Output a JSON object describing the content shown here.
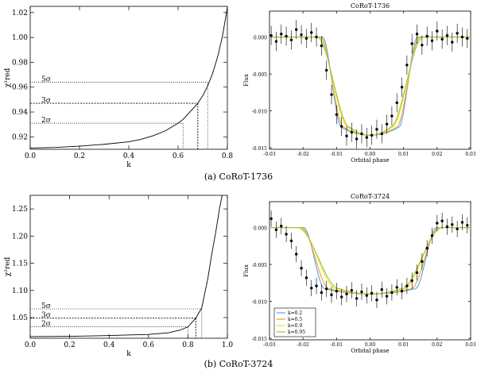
{
  "captions": {
    "a": "(a)  CoRoT-1736",
    "b": "(b)  CoRoT-3724"
  },
  "colors": {
    "blue": "#5aa6e0",
    "orange": "#f0a030",
    "yellow": "#f0e020",
    "green": "#9ac840"
  },
  "chart_data": [
    {
      "id": "chi-a",
      "type": "line",
      "title": "",
      "xlabel": "k",
      "ylabel": "χ²red",
      "xlim": [
        0.0,
        0.8
      ],
      "ylim": [
        0.91,
        1.025
      ],
      "xticks": [
        0.0,
        0.2,
        0.4,
        0.6,
        0.8
      ],
      "xtick_labels": [
        "0.0",
        "0.2",
        "0.4",
        "0.6",
        "0.8"
      ],
      "yticks": [
        0.92,
        0.94,
        0.96,
        0.98,
        1.0,
        1.02
      ],
      "ytick_labels": [
        "0.92",
        "0.94",
        "0.96",
        "0.98",
        "1.00",
        "1.02"
      ],
      "x": [
        0.0,
        0.1,
        0.2,
        0.3,
        0.4,
        0.45,
        0.5,
        0.55,
        0.6,
        0.62,
        0.65,
        0.68,
        0.7,
        0.72,
        0.74,
        0.76,
        0.78,
        0.8
      ],
      "y": [
        0.911,
        0.9115,
        0.9125,
        0.914,
        0.916,
        0.918,
        0.921,
        0.925,
        0.931,
        0.934,
        0.9405,
        0.947,
        0.953,
        0.961,
        0.971,
        0.984,
        1.001,
        1.024
      ],
      "sigma_levels": [
        {
          "label": "5σ",
          "y": 0.964,
          "x": 0.72,
          "style": "dotted"
        },
        {
          "label": "3σ",
          "y": 0.947,
          "x": 0.68,
          "style": "dashed"
        },
        {
          "label": "2σ",
          "y": 0.931,
          "x": 0.62,
          "style": "dotted"
        }
      ]
    },
    {
      "id": "lc-a",
      "type": "scatter",
      "title": "CoRoT-1736",
      "xlabel": "Orbital phase",
      "ylabel": "Flux",
      "xlim": [
        -0.03,
        0.03
      ],
      "ylim": [
        -0.0152,
        0.0035
      ],
      "xticks": [
        -0.03,
        -0.02,
        -0.01,
        0.0,
        0.01,
        0.02,
        0.03
      ],
      "xtick_labels": [
        "-0.03",
        "-0.02",
        "-0.01",
        "0.00",
        "0.01",
        "0.02",
        "0.03"
      ],
      "yticks": [
        0.0,
        -0.005,
        -0.01,
        -0.015
      ],
      "ytick_labels": [
        "0.000",
        "-0.005",
        "-0.010",
        "-0.015"
      ],
      "data": {
        "x": [
          -0.0295,
          -0.028,
          -0.0265,
          -0.025,
          -0.0235,
          -0.022,
          -0.0205,
          -0.019,
          -0.0175,
          -0.016,
          -0.0145,
          -0.013,
          -0.0115,
          -0.01,
          -0.0085,
          -0.007,
          -0.0055,
          -0.004,
          -0.0025,
          -0.001,
          0.0005,
          0.002,
          0.0035,
          0.005,
          0.0065,
          0.008,
          0.0095,
          0.011,
          0.0125,
          0.014,
          0.0155,
          0.017,
          0.0185,
          0.02,
          0.0215,
          0.023,
          0.0245,
          0.026,
          0.0275,
          0.029
        ],
        "y": [
          0.0002,
          -0.0006,
          0.0004,
          0.0001,
          -0.0004,
          0.001,
          0.0003,
          -0.0002,
          0.0006,
          0.0,
          -0.0012,
          -0.0045,
          -0.0078,
          -0.0105,
          -0.0121,
          -0.0134,
          -0.0129,
          -0.0138,
          -0.0131,
          -0.0136,
          -0.0133,
          -0.0125,
          -0.0131,
          -0.0118,
          -0.0107,
          -0.0089,
          -0.0068,
          -0.0038,
          -0.0009,
          0.0004,
          -0.0011,
          0.0001,
          -0.0005,
          0.0008,
          -0.0003,
          0.0002,
          -0.0007,
          0.0005,
          0.0,
          -0.0002
        ],
        "yerr": 0.0013
      },
      "models": [
        {
          "label": "k=0.2",
          "color": "#5aa6e0",
          "depth": -0.0133,
          "t1": 0.0142,
          "t2": 0.0085
        },
        {
          "label": "k=0.5",
          "color": "#f0a030",
          "depth": -0.0133,
          "t1": 0.0148,
          "t2": 0.0078
        },
        {
          "label": "k=0.9",
          "color": "#f0e020",
          "depth": -0.0133,
          "t1": 0.0155,
          "t2": 0.0065
        },
        {
          "label": "k=0.95",
          "color": "#9ac840",
          "depth": -0.0133,
          "t1": 0.0158,
          "t2": 0.006
        }
      ]
    },
    {
      "id": "chi-b",
      "type": "line",
      "title": "",
      "xlabel": "k",
      "ylabel": "χ²red",
      "xlim": [
        0.0,
        1.0
      ],
      "ylim": [
        1.012,
        1.275
      ],
      "xticks": [
        0.0,
        0.2,
        0.4,
        0.6,
        0.8,
        1.0
      ],
      "xtick_labels": [
        "0.0",
        "0.2",
        "0.4",
        "0.6",
        "0.8",
        "1.0"
      ],
      "yticks": [
        1.05,
        1.1,
        1.15,
        1.2,
        1.25
      ],
      "ytick_labels": [
        "1.05",
        "1.10",
        "1.15",
        "1.20",
        "1.25"
      ],
      "x": [
        0.0,
        0.2,
        0.4,
        0.6,
        0.7,
        0.76,
        0.8,
        0.84,
        0.87,
        0.9,
        0.92,
        0.94,
        0.96,
        0.975
      ],
      "y": [
        1.015,
        1.0155,
        1.017,
        1.019,
        1.022,
        1.027,
        1.033,
        1.049,
        1.068,
        1.12,
        1.165,
        1.205,
        1.25,
        1.278
      ],
      "sigma_levels": [
        {
          "label": "5σ",
          "y": 1.066,
          "x": 0.87,
          "style": "dotted"
        },
        {
          "label": "3σ",
          "y": 1.049,
          "x": 0.84,
          "style": "dashed"
        },
        {
          "label": "2σ",
          "y": 1.033,
          "x": 0.8,
          "style": "dotted"
        }
      ]
    },
    {
      "id": "lc-b",
      "type": "scatter",
      "title": "CoRoT-3724",
      "xlabel": "Orbital phase",
      "ylabel": "Flux",
      "xlim": [
        -0.03,
        0.03
      ],
      "ylim": [
        -0.0152,
        0.0035
      ],
      "xticks": [
        -0.03,
        -0.02,
        -0.01,
        0.0,
        0.01,
        0.02,
        0.03
      ],
      "xtick_labels": [
        "-0.03",
        "-0.02",
        "-0.01",
        "0.00",
        "0.01",
        "0.02",
        "0.03"
      ],
      "yticks": [
        0.0,
        -0.005,
        -0.01,
        -0.015
      ],
      "ytick_labels": [
        "0.000",
        "-0.005",
        "-0.010",
        "-0.015"
      ],
      "data": {
        "x": [
          -0.0295,
          -0.028,
          -0.0265,
          -0.025,
          -0.0235,
          -0.022,
          -0.0205,
          -0.019,
          -0.0175,
          -0.016,
          -0.0145,
          -0.013,
          -0.0115,
          -0.01,
          -0.0085,
          -0.007,
          -0.0055,
          -0.004,
          -0.0025,
          -0.001,
          0.0005,
          0.002,
          0.0035,
          0.005,
          0.0065,
          0.008,
          0.0095,
          0.011,
          0.0125,
          0.014,
          0.0155,
          0.017,
          0.0185,
          0.02,
          0.0215,
          0.023,
          0.0245,
          0.026,
          0.0275,
          0.029
        ],
        "y": [
          0.0012,
          -0.0003,
          0.0002,
          -0.0009,
          -0.0018,
          -0.0036,
          -0.0055,
          -0.0068,
          -0.0082,
          -0.0079,
          -0.0088,
          -0.0083,
          -0.0091,
          -0.0086,
          -0.0094,
          -0.009,
          -0.0085,
          -0.0096,
          -0.0087,
          -0.0092,
          -0.0089,
          -0.0098,
          -0.0084,
          -0.0093,
          -0.0088,
          -0.0081,
          -0.0086,
          -0.0079,
          -0.0072,
          -0.0061,
          -0.0046,
          -0.0028,
          -0.0011,
          0.0006,
          0.0009,
          0.0001,
          0.0004,
          -0.0002,
          0.0007,
          0.0003
        ],
        "yerr": 0.0011
      },
      "models": [
        {
          "label": "k=0.2",
          "color": "#5aa6e0",
          "depth": -0.009,
          "t1": 0.0198,
          "t2": 0.0135
        },
        {
          "label": "k=0.5",
          "color": "#f0a030",
          "depth": -0.009,
          "t1": 0.0205,
          "t2": 0.0122
        },
        {
          "label": "k=0.9",
          "color": "#f0e020",
          "depth": -0.009,
          "t1": 0.0212,
          "t2": 0.01
        },
        {
          "label": "k=0.95",
          "color": "#9ac840",
          "depth": -0.009,
          "t1": 0.0216,
          "t2": 0.0092
        }
      ],
      "legend": {
        "placement": "bottom-left",
        "entries": [
          "k=0.2",
          "k=0.5",
          "k=0.9",
          "k=0.95"
        ]
      }
    }
  ]
}
